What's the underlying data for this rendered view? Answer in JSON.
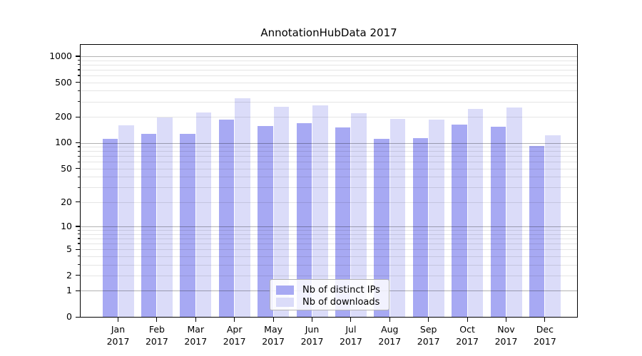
{
  "chart_data": {
    "type": "bar",
    "title": "AnnotationHubData 2017",
    "categories": [
      "Jan",
      "Feb",
      "Mar",
      "Apr",
      "May",
      "Jun",
      "Jul",
      "Aug",
      "Sep",
      "Oct",
      "Nov",
      "Dec"
    ],
    "category_year": "2017",
    "series": [
      {
        "name": "Nb of distinct IPs",
        "color": "#a7a9f3",
        "values": [
          111,
          126,
          127,
          187,
          156,
          170,
          151,
          110,
          113,
          161,
          153,
          91
        ]
      },
      {
        "name": "Nb of downloads",
        "color": "#dbdcf9",
        "values": [
          160,
          195,
          224,
          330,
          262,
          270,
          222,
          189,
          185,
          246,
          257,
          121
        ]
      }
    ],
    "yscale": "log1p",
    "ylim": [
      0,
      1365
    ],
    "yticks": [
      0,
      1,
      2,
      5,
      10,
      20,
      50,
      100,
      200,
      500,
      1000
    ],
    "grid": true,
    "grid_major_values": [
      1,
      10,
      100,
      1000
    ],
    "grid_minor_values": [
      2,
      3,
      4,
      5,
      6,
      7,
      8,
      9,
      20,
      30,
      40,
      50,
      60,
      70,
      80,
      90,
      200,
      300,
      400,
      500,
      600,
      700,
      800,
      900
    ],
    "legend_position": "lower center"
  }
}
